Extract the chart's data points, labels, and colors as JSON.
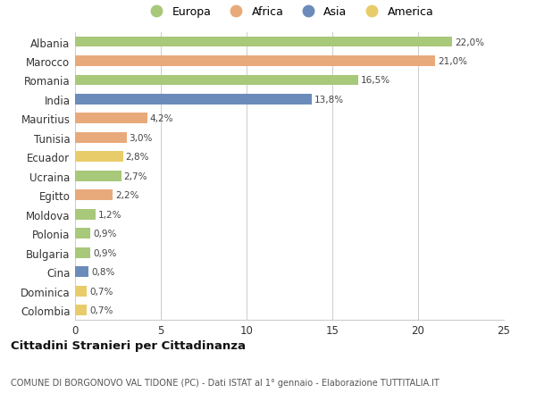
{
  "countries": [
    "Albania",
    "Marocco",
    "Romania",
    "India",
    "Mauritius",
    "Tunisia",
    "Ecuador",
    "Ucraina",
    "Egitto",
    "Moldova",
    "Polonia",
    "Bulgaria",
    "Cina",
    "Dominica",
    "Colombia"
  ],
  "values": [
    22.0,
    21.0,
    16.5,
    13.8,
    4.2,
    3.0,
    2.8,
    2.7,
    2.2,
    1.2,
    0.9,
    0.9,
    0.8,
    0.7,
    0.7
  ],
  "labels": [
    "22,0%",
    "21,0%",
    "16,5%",
    "13,8%",
    "4,2%",
    "3,0%",
    "2,8%",
    "2,7%",
    "2,2%",
    "1,2%",
    "0,9%",
    "0,9%",
    "0,8%",
    "0,7%",
    "0,7%"
  ],
  "continents": [
    "Europa",
    "Africa",
    "Europa",
    "Asia",
    "Africa",
    "Africa",
    "America",
    "Europa",
    "Africa",
    "Europa",
    "Europa",
    "Europa",
    "Asia",
    "America",
    "America"
  ],
  "continent_colors": {
    "Europa": "#a8c87a",
    "Africa": "#e8aa7a",
    "Asia": "#6b8cba",
    "America": "#e8cc6a"
  },
  "legend_order": [
    "Europa",
    "Africa",
    "Asia",
    "America"
  ],
  "xlim": [
    0,
    25
  ],
  "xticks": [
    0,
    5,
    10,
    15,
    20,
    25
  ],
  "title": "Cittadini Stranieri per Cittadinanza",
  "subtitle": "COMUNE DI BORGONOVO VAL TIDONE (PC) - Dati ISTAT al 1° gennaio - Elaborazione TUTTITALIA.IT",
  "bg_color": "#ffffff",
  "grid_color": "#cccccc"
}
